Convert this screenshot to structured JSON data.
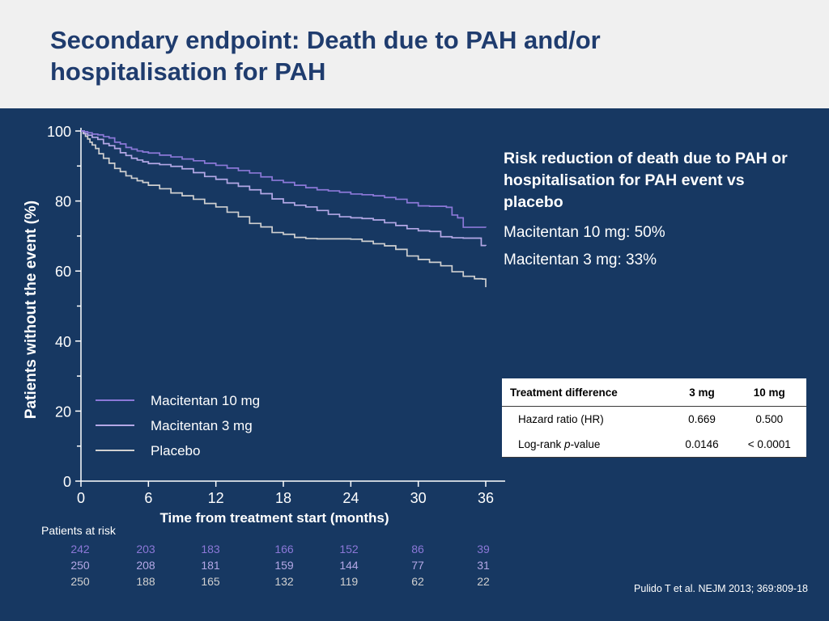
{
  "title": "Secondary endpoint: Death due to PAH and/or hospitalisation for PAH",
  "side": {
    "heading": "Risk reduction of death due to PAH or hospitalisation for PAH event vs placebo",
    "line1": "Macitentan 10 mg: 50%",
    "line2": "Macitentan 3 mg: 33%"
  },
  "table": {
    "headers": [
      "Treatment difference",
      "3 mg",
      "10 mg"
    ],
    "rows": [
      {
        "label": "Hazard ratio (HR)",
        "v3": "0.669",
        "v10": "0.500"
      },
      {
        "label_pre": "Log-rank ",
        "label_italic": "p",
        "label_post": "-value",
        "v3": "0.0146",
        "v10": "< 0.0001"
      }
    ]
  },
  "risk": {
    "caption": "Patients at risk",
    "rows": [
      {
        "color": "#8c78d8",
        "values": [
          "242",
          "203",
          "183",
          "166",
          "152",
          "86",
          "39"
        ]
      },
      {
        "color": "#b4a8e6",
        "values": [
          "250",
          "208",
          "181",
          "159",
          "144",
          "77",
          "31"
        ]
      },
      {
        "color": "#d0d0d0",
        "values": [
          "250",
          "188",
          "165",
          "132",
          "119",
          "62",
          "22"
        ]
      }
    ]
  },
  "citation": "Pulido T et al. NEJM 2013; 369:809-18",
  "chart_data": {
    "type": "line",
    "xlabel": "Time from treatment start (months)",
    "ylabel": "Patients without the event (%)",
    "xlim": [
      0,
      36
    ],
    "ylim": [
      0,
      100
    ],
    "xticks": [
      0,
      6,
      12,
      18,
      24,
      30,
      36
    ],
    "yticks": [
      0,
      20,
      40,
      60,
      80,
      100
    ],
    "legend_position": "bottom-left",
    "series": [
      {
        "name": "Macitentan 10 mg",
        "color": "#8c78d8",
        "x": [
          0,
          0.3,
          0.6,
          1.0,
          1.5,
          2.0,
          2.5,
          3.0,
          3.5,
          4.0,
          4.5,
          5.0,
          5.5,
          6.0,
          7.0,
          8.0,
          9.0,
          10.0,
          11.0,
          12.0,
          13.0,
          14.0,
          15.0,
          16.0,
          17.0,
          18.0,
          19.0,
          20.0,
          21.0,
          22.0,
          23.0,
          24.0,
          25.0,
          26.0,
          27.0,
          28.0,
          29.0,
          30.0,
          31.0,
          32.0,
          32.5,
          33.0,
          33.5,
          34.0,
          35.0,
          36.0
        ],
        "y": [
          100,
          99.8,
          99.5,
          99.1,
          98.9,
          98.4,
          98.0,
          96.8,
          96.3,
          95.3,
          94.8,
          94.3,
          94.0,
          93.7,
          93.1,
          92.6,
          92.0,
          91.5,
          90.8,
          90.2,
          89.4,
          88.7,
          88.0,
          86.9,
          85.9,
          85.3,
          84.5,
          83.8,
          83.2,
          82.9,
          82.5,
          82.0,
          81.8,
          81.5,
          81.0,
          80.5,
          79.5,
          78.6,
          78.5,
          78.5,
          78.2,
          76.0,
          75.2,
          72.5,
          72.5,
          72.4
        ]
      },
      {
        "name": "Macitentan 3 mg",
        "color": "#b4a8e6",
        "x": [
          0,
          0.3,
          0.6,
          1.0,
          1.5,
          2.0,
          2.5,
          3.0,
          3.5,
          4.0,
          4.5,
          5.0,
          5.5,
          6.0,
          7.0,
          8.0,
          9.0,
          10.0,
          11.0,
          12.0,
          13.0,
          14.0,
          15.0,
          16.0,
          17.0,
          18.0,
          19.0,
          20.0,
          21.0,
          22.0,
          23.0,
          24.0,
          25.0,
          26.0,
          27.0,
          28.0,
          29.0,
          30.0,
          31.0,
          32.0,
          33.0,
          34.0,
          35.0,
          35.6,
          36.0
        ],
        "y": [
          100,
          99.2,
          98.8,
          98.2,
          97.6,
          96.4,
          95.8,
          95.0,
          93.8,
          93.0,
          92.2,
          91.7,
          91.2,
          90.7,
          90.4,
          89.9,
          89.2,
          88.1,
          87.0,
          86.2,
          85.1,
          84.2,
          83.2,
          82.1,
          80.6,
          79.5,
          78.8,
          78.3,
          77.3,
          76.2,
          75.5,
          75.2,
          75.0,
          74.6,
          73.8,
          73.0,
          72.1,
          71.5,
          71.3,
          69.8,
          69.5,
          69.4,
          69.4,
          67.3,
          67.2
        ]
      },
      {
        "name": "Placebo",
        "color": "#d0d0d0",
        "x": [
          0,
          0.2,
          0.4,
          0.6,
          0.8,
          1.0,
          1.3,
          1.6,
          2.0,
          2.5,
          3.0,
          3.5,
          4.0,
          4.5,
          5.0,
          5.5,
          6.0,
          7.0,
          8.0,
          9.0,
          10.0,
          11.0,
          12.0,
          13.0,
          14.0,
          15.0,
          16.0,
          17.0,
          18.0,
          19.0,
          20.0,
          21.0,
          22.0,
          23.0,
          24.0,
          25.0,
          26.0,
          27.0,
          28.0,
          29.0,
          30.0,
          31.0,
          32.0,
          33.0,
          34.0,
          35.0,
          35.7,
          36.0
        ],
        "y": [
          100,
          99.3,
          98.5,
          97.7,
          96.8,
          96.0,
          95.0,
          93.5,
          92.2,
          90.8,
          89.3,
          88.4,
          87.2,
          86.5,
          85.8,
          85.3,
          84.5,
          83.5,
          82.3,
          81.5,
          80.5,
          79.3,
          78.3,
          76.8,
          75.5,
          73.6,
          72.6,
          71.0,
          70.5,
          69.6,
          69.3,
          69.2,
          69.2,
          69.2,
          69.1,
          68.5,
          67.8,
          67.2,
          66.2,
          64.3,
          63.3,
          62.5,
          61.5,
          59.8,
          58.5,
          57.8,
          57.7,
          55.4
        ]
      }
    ]
  }
}
